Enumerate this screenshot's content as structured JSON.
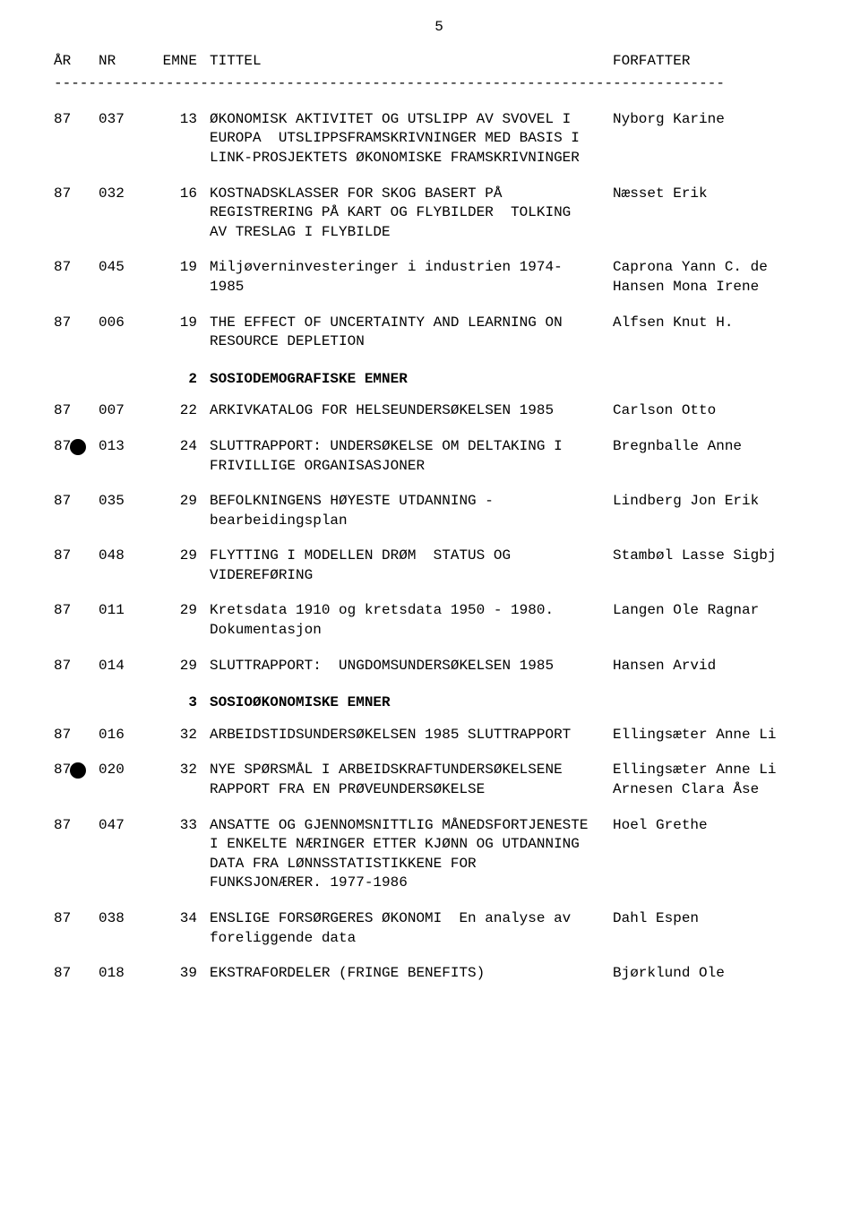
{
  "page_number": "5",
  "headers": {
    "ar": "ÅR",
    "nr": "NR",
    "emne": "EMNE",
    "tittel": "TITTEL",
    "forfatter": "FORFATTER"
  },
  "divider": "------------------------------------------------------------------------------",
  "sections": [
    {
      "heading": null,
      "rows": [
        {
          "ar": "87",
          "nr": "037",
          "emne": "13",
          "tittel": "ØKONOMISK AKTIVITET OG UTSLIPP AV SVOVEL I EUROPA  UTSLIPPSFRAMSKRIVNINGER MED BASIS I LINK-PROSJEKTETS ØKONOMISKE FRAMSKRIVNINGER",
          "forfatter": "Nyborg Karine",
          "bullet": false
        },
        {
          "ar": "87",
          "nr": "032",
          "emne": "16",
          "tittel": "KOSTNADSKLASSER FOR SKOG BASERT PÅ REGISTRERING PÅ KART OG FLYBILDER  TOLKING AV TRESLAG I FLYBILDE",
          "forfatter": "Næsset Erik",
          "bullet": false
        },
        {
          "ar": "87",
          "nr": "045",
          "emne": "19",
          "tittel": "Miljøverninvesteringer i industrien 1974-1985",
          "forfatter": "Caprona Yann C. de\nHansen Mona Irene",
          "bullet": false
        },
        {
          "ar": "87",
          "nr": "006",
          "emne": "19",
          "tittel": "THE EFFECT OF UNCERTAINTY AND LEARNING ON RESOURCE DEPLETION",
          "forfatter": "Alfsen Knut H.",
          "bullet": false
        }
      ]
    },
    {
      "heading_num": "2",
      "heading": "SOSIODEMOGRAFISKE EMNER",
      "rows": [
        {
          "ar": "87",
          "nr": "007",
          "emne": "22",
          "tittel": "ARKIVKATALOG FOR HELSEUNDERSØKELSEN 1985",
          "forfatter": "Carlson Otto",
          "bullet": false
        },
        {
          "ar": "87",
          "nr": "013",
          "emne": "24",
          "tittel": "SLUTTRAPPORT: UNDERSØKELSE OM DELTAKING I FRIVILLIGE ORGANISASJONER",
          "forfatter": "Bregnballe Anne",
          "bullet": true
        },
        {
          "ar": "87",
          "nr": "035",
          "emne": "29",
          "tittel": "BEFOLKNINGENS HØYESTE UTDANNING -bearbeidingsplan",
          "forfatter": "Lindberg Jon Erik",
          "bullet": false
        },
        {
          "ar": "87",
          "nr": "048",
          "emne": "29",
          "tittel": "FLYTTING I MODELLEN DRØM  STATUS OG VIDEREFØRING",
          "forfatter": "Stambøl Lasse Sigbj",
          "bullet": false
        },
        {
          "ar": "87",
          "nr": "011",
          "emne": "29",
          "tittel": "Kretsdata 1910 og kretsdata 1950 - 1980. Dokumentasjon",
          "forfatter": "Langen Ole Ragnar",
          "bullet": false
        },
        {
          "ar": "87",
          "nr": "014",
          "emne": "29",
          "tittel": "SLUTTRAPPORT:  UNGDOMSUNDERSØKELSEN 1985",
          "forfatter": "Hansen Arvid",
          "bullet": false
        }
      ]
    },
    {
      "heading_num": "3",
      "heading": "SOSIOØKONOMISKE EMNER",
      "rows": [
        {
          "ar": "87",
          "nr": "016",
          "emne": "32",
          "tittel": "ARBEIDSTIDSUNDERSØKELSEN 1985 SLUTTRAPPORT",
          "forfatter": "Ellingsæter Anne Li",
          "bullet": false
        },
        {
          "ar": "87",
          "nr": "020",
          "emne": "32",
          "tittel": "NYE SPØRSMÅL I ARBEIDSKRAFTUNDERSØKELSENE RAPPORT FRA EN PRØVEUNDERSØKELSE",
          "forfatter": "Ellingsæter Anne Li\nArnesen Clara Åse",
          "bullet": true
        },
        {
          "ar": "87",
          "nr": "047",
          "emne": "33",
          "tittel": "ANSATTE OG GJENNOMSNITTLIG MÅNEDSFORTJENESTE I ENKELTE NÆRINGER ETTER KJØNN OG UTDANNING DATA FRA LØNNSSTATISTIKKENE FOR FUNKSJONÆRER. 1977-1986",
          "forfatter": "Hoel Grethe",
          "bullet": false
        },
        {
          "ar": "87",
          "nr": "038",
          "emne": "34",
          "tittel": "ENSLIGE FORSØRGERES ØKONOMI  En analyse av foreliggende data",
          "forfatter": "Dahl Espen",
          "bullet": false
        },
        {
          "ar": "87",
          "nr": "018",
          "emne": "39",
          "tittel": "EKSTRAFORDELER (FRINGE BENEFITS)",
          "forfatter": "Bjørklund Ole",
          "bullet": false
        }
      ]
    }
  ]
}
